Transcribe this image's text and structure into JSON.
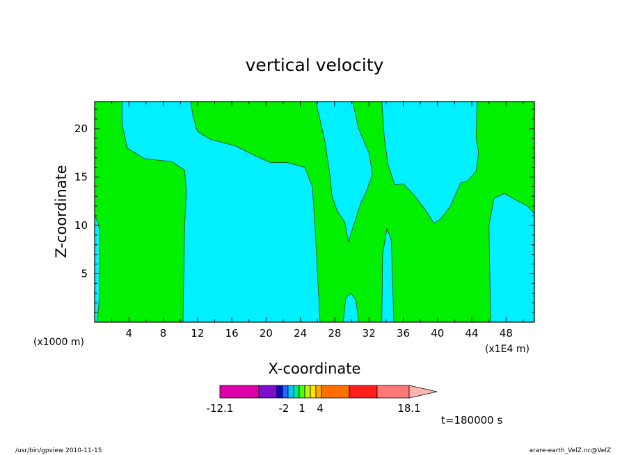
{
  "chart_data": {
    "type": "contour",
    "title": "vertical velocity",
    "xlabel": "X-coordinate",
    "ylabel": "Z-coordinate",
    "x_unit_left": "(x1000 m)",
    "x_unit_right": "(x1E4 m)",
    "xticks": [
      "4",
      "8",
      "12",
      "16",
      "20",
      "24",
      "28",
      "32",
      "36",
      "40",
      "44",
      "48"
    ],
    "yticks": [
      "5",
      "10",
      "15",
      "20"
    ],
    "xlim": [
      0,
      51.3
    ],
    "ylim": [
      0,
      22.8
    ],
    "colors": {
      "negative": "#00f0ff",
      "positive": "#00f000"
    },
    "regions": [
      {
        "level": "negative",
        "polygon": [
          [
            0,
            0
          ],
          [
            0.3,
            0
          ],
          [
            0.6,
            3
          ],
          [
            0.6,
            9.5
          ],
          [
            0.3,
            10.5
          ],
          [
            0,
            11
          ]
        ]
      },
      {
        "level": "negative",
        "polygon": [
          [
            3.2,
            22.8
          ],
          [
            3.2,
            20.5
          ],
          [
            3.8,
            18
          ],
          [
            5.8,
            16.9
          ],
          [
            9,
            16.6
          ],
          [
            10.5,
            15.7
          ],
          [
            10.7,
            13.5
          ],
          [
            10.5,
            10
          ],
          [
            10.3,
            0
          ],
          [
            26.3,
            0
          ],
          [
            26,
            5
          ],
          [
            25.7,
            10
          ],
          [
            25.4,
            14
          ],
          [
            24.5,
            16
          ],
          [
            22.5,
            16.5
          ],
          [
            20.5,
            16.5
          ],
          [
            18.5,
            17.3
          ],
          [
            16.5,
            18.2
          ],
          [
            13.5,
            18.9
          ],
          [
            12,
            19.7
          ],
          [
            11.5,
            21.2
          ],
          [
            11.2,
            22.8
          ]
        ]
      },
      {
        "level": "negative",
        "polygon": [
          [
            25.8,
            22.8
          ],
          [
            26.8,
            19
          ],
          [
            27.4,
            15.5
          ],
          [
            27.7,
            13
          ],
          [
            28.3,
            11.5
          ],
          [
            29.2,
            10.3
          ],
          [
            29.6,
            8.3
          ],
          [
            30.4,
            10.5
          ],
          [
            31,
            12.2
          ],
          [
            31.7,
            13.5
          ],
          [
            32.4,
            15.3
          ],
          [
            32,
            17.5
          ],
          [
            30.8,
            20
          ],
          [
            30.1,
            22.8
          ]
        ]
      },
      {
        "level": "negative",
        "polygon": [
          [
            33.5,
            22.8
          ],
          [
            33.8,
            19
          ],
          [
            34.2,
            16.4
          ],
          [
            35,
            14.2
          ],
          [
            36,
            14.3
          ],
          [
            37.2,
            13.2
          ],
          [
            38.5,
            11.7
          ],
          [
            39.6,
            10.2
          ],
          [
            40.4,
            10.7
          ],
          [
            41.5,
            12
          ],
          [
            42.7,
            14.4
          ],
          [
            43.5,
            14.6
          ],
          [
            44.5,
            15.6
          ],
          [
            44.8,
            17.5
          ],
          [
            44.5,
            19
          ],
          [
            44.6,
            22.8
          ]
        ]
      },
      {
        "level": "negative",
        "polygon": [
          [
            46.2,
            0
          ],
          [
            46.1,
            5
          ],
          [
            46,
            10
          ],
          [
            46.6,
            12.8
          ],
          [
            47.8,
            13.3
          ],
          [
            49.2,
            12.6
          ],
          [
            50.5,
            12
          ],
          [
            51.3,
            11.2
          ],
          [
            51.3,
            0
          ]
        ]
      },
      {
        "level": "negative",
        "polygon": [
          [
            29,
            0
          ],
          [
            29.3,
            2.5
          ],
          [
            29.9,
            3
          ],
          [
            30.5,
            2.2
          ],
          [
            30.8,
            0
          ]
        ]
      },
      {
        "level": "negative",
        "polygon": [
          [
            33.5,
            0
          ],
          [
            33.6,
            7
          ],
          [
            34.1,
            9.7
          ],
          [
            34.6,
            8.5
          ],
          [
            34.8,
            3
          ],
          [
            34.9,
            0
          ]
        ]
      }
    ],
    "colorbar": {
      "colors": [
        "#dd00aa",
        "#7a10c8",
        "#0a0ac8",
        "#1e64ff",
        "#00c8ff",
        "#00e68c",
        "#50ff00",
        "#c8f000",
        "#ffe600",
        "#ffaa00",
        "#ff6e00",
        "#ff1e1e",
        "#ff7878",
        "#ffb4b4"
      ],
      "labels": [
        "-12.1",
        "-2",
        "1",
        "4",
        "18.1"
      ]
    },
    "time_label": "t=180000 s"
  },
  "footer": {
    "left": "/usr/bin/gpview   2010-11-15",
    "right": "arare-earth_VelZ.nc@VelZ"
  }
}
